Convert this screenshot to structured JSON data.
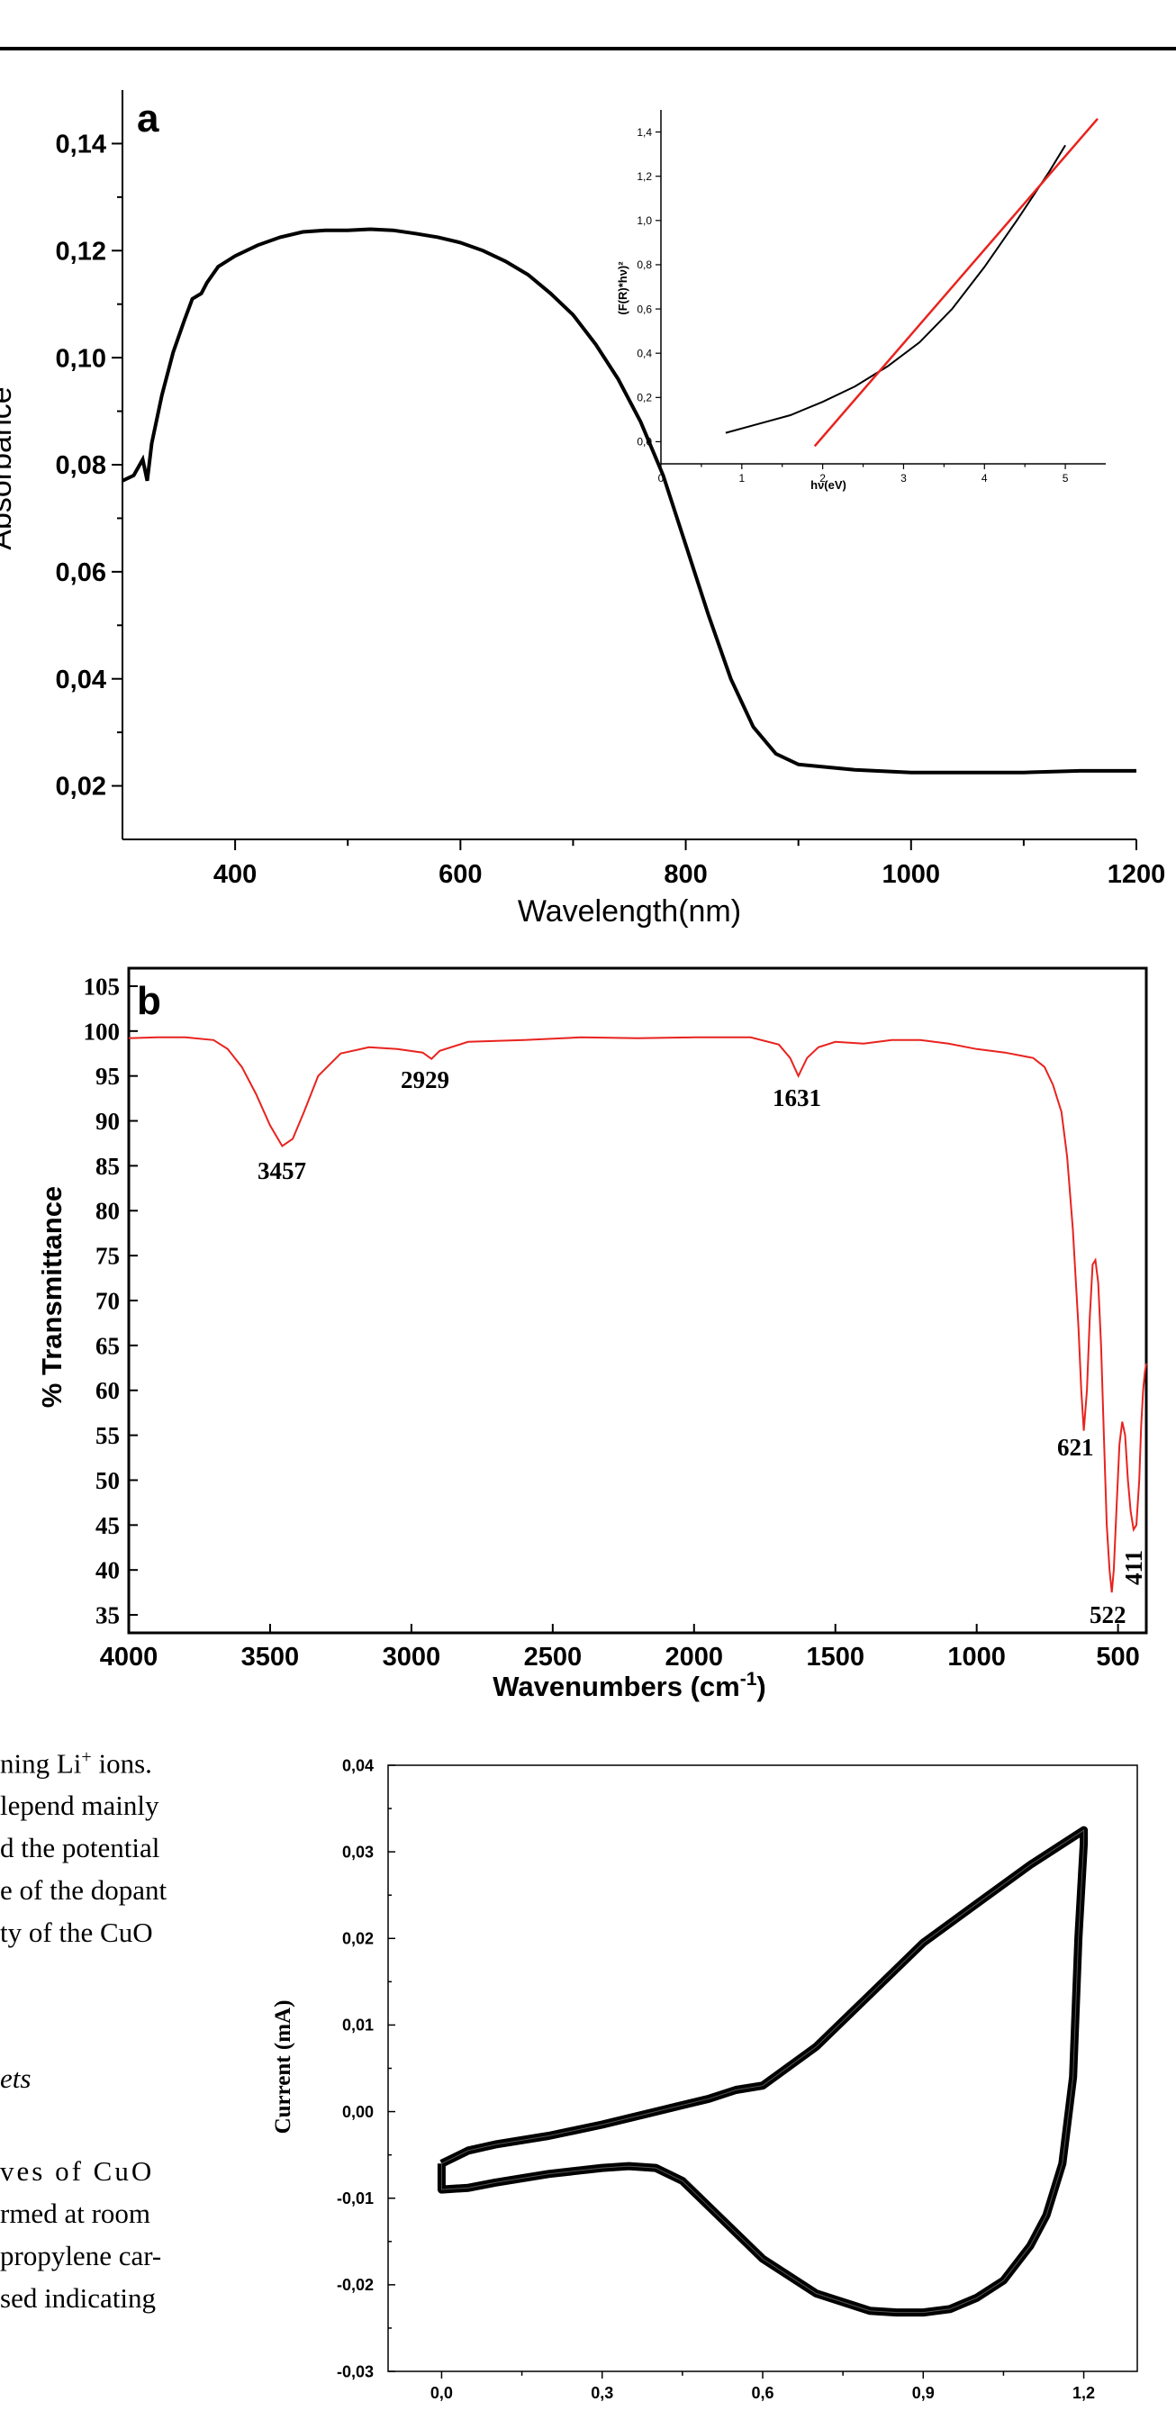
{
  "chart_data": [
    {
      "id": "a",
      "type": "line",
      "panel_label": "a",
      "xlabel": "Wavelength(nm)",
      "ylabel": "Absorbance",
      "xlim": [
        300,
        1200
      ],
      "ylim": [
        0.01,
        0.15
      ],
      "xticks": [
        400,
        600,
        800,
        1000,
        1200
      ],
      "xtick_labels": [
        "400",
        "600",
        "800",
        "1000",
        "1200"
      ],
      "yticks": [
        0.02,
        0.04,
        0.06,
        0.08,
        0.1,
        0.12,
        0.14
      ],
      "ytick_labels": [
        "0,02",
        "0,04",
        "0,06",
        "0,08",
        "0,10",
        "0,12",
        "0,14"
      ],
      "line_color": "#000000",
      "series": [
        {
          "x": [
            300,
            310,
            318,
            322,
            326,
            335,
            345,
            355,
            362,
            370,
            375,
            385,
            400,
            420,
            440,
            460,
            480,
            500,
            520,
            540,
            560,
            580,
            600,
            620,
            640,
            660,
            680,
            700,
            720,
            740,
            760,
            780,
            800,
            820,
            840,
            860,
            880,
            900,
            950,
            1000,
            1050,
            1100,
            1150,
            1200
          ],
          "y": [
            0.077,
            0.078,
            0.081,
            0.077,
            0.084,
            0.093,
            0.101,
            0.107,
            0.111,
            0.112,
            0.114,
            0.117,
            0.119,
            0.121,
            0.1225,
            0.1235,
            0.1238,
            0.1238,
            0.124,
            0.1238,
            0.1232,
            0.1225,
            0.1215,
            0.12,
            0.118,
            0.1155,
            0.112,
            0.108,
            0.1025,
            0.096,
            0.088,
            0.078,
            0.065,
            0.052,
            0.04,
            0.031,
            0.026,
            0.024,
            0.023,
            0.0225,
            0.0225,
            0.0225,
            0.0228,
            0.0228
          ]
        }
      ],
      "inset": {
        "xlabel": "hν(eV)",
        "ylabel": "(F(R)*hν)²",
        "xlim": [
          0,
          5.5
        ],
        "ylim": [
          -0.1,
          1.5
        ],
        "xticks": [
          0,
          1,
          2,
          3,
          4,
          5
        ],
        "xtick_labels": [
          "0",
          "1",
          "2",
          "3",
          "4",
          "5"
        ],
        "yticks": [
          0.0,
          0.2,
          0.4,
          0.6,
          0.8,
          1.0,
          1.2,
          1.4
        ],
        "ytick_labels": [
          "0,0",
          "0,2",
          "0,4",
          "0,6",
          "0,8",
          "1,0",
          "1,2",
          "1,4"
        ],
        "series": [
          {
            "color": "#000000",
            "x": [
              0.8,
              1.2,
              1.6,
              2.0,
              2.4,
              2.8,
              3.2,
              3.6,
              4.0,
              4.4,
              4.8,
              5.0
            ],
            "y": [
              0.04,
              0.08,
              0.12,
              0.18,
              0.25,
              0.34,
              0.45,
              0.6,
              0.79,
              1.0,
              1.22,
              1.34
            ]
          },
          {
            "color": "#e8231f",
            "x": [
              1.9,
              5.4
            ],
            "y": [
              -0.02,
              1.46
            ]
          }
        ]
      }
    },
    {
      "id": "b",
      "type": "line",
      "panel_label": "b",
      "xlabel": "Wavenumbers (cm",
      "xlabel_sup": "-1",
      "xlabel_end": ")",
      "ylabel": "% Transmittance",
      "xlim": [
        4000,
        400
      ],
      "ylim": [
        33,
        107
      ],
      "xticks": [
        4000,
        3500,
        3000,
        2500,
        2000,
        1500,
        1000,
        500
      ],
      "xtick_labels": [
        "4000",
        "3500",
        "3000",
        "2500",
        "2000",
        "1500",
        "1000",
        "500"
      ],
      "yticks": [
        35,
        40,
        45,
        50,
        55,
        60,
        65,
        70,
        75,
        80,
        85,
        90,
        95,
        100,
        105
      ],
      "ytick_labels": [
        "35",
        "40",
        "45",
        "50",
        "55",
        "60",
        "65",
        "70",
        "75",
        "80",
        "85",
        "90",
        "95",
        "100",
        "105"
      ],
      "line_color": "#e8231f",
      "series": [
        {
          "x": [
            4000,
            3900,
            3800,
            3700,
            3650,
            3600,
            3550,
            3500,
            3457,
            3420,
            3380,
            3330,
            3250,
            3150,
            3050,
            2960,
            2929,
            2900,
            2800,
            2600,
            2400,
            2200,
            2000,
            1800,
            1700,
            1660,
            1631,
            1600,
            1560,
            1500,
            1400,
            1300,
            1200,
            1100,
            1000,
            900,
            800,
            760,
            730,
            700,
            680,
            660,
            640,
            630,
            621,
            610,
            600,
            590,
            580,
            570,
            560,
            550,
            540,
            530,
            522,
            515,
            505,
            495,
            485,
            475,
            465,
            455,
            445,
            435,
            425,
            418,
            411,
            405,
            400
          ],
          "y": [
            99.2,
            99.3,
            99.3,
            99.0,
            98.0,
            96.0,
            93.0,
            89.5,
            87.2,
            88.0,
            91.0,
            95.0,
            97.5,
            98.2,
            98.0,
            97.6,
            96.9,
            97.8,
            98.8,
            99.0,
            99.3,
            99.2,
            99.3,
            99.3,
            98.5,
            97.0,
            95.0,
            97.0,
            98.2,
            98.8,
            98.6,
            99.0,
            99.0,
            98.6,
            98.0,
            97.6,
            97.0,
            96.0,
            94.0,
            91.0,
            86.0,
            78.0,
            67.0,
            60.0,
            55.5,
            60.0,
            68.0,
            74.0,
            74.5,
            72.0,
            65.0,
            55.0,
            45.0,
            40.0,
            37.5,
            40.0,
            47.0,
            54.0,
            56.5,
            55.0,
            50.0,
            46.5,
            44.5,
            45.0,
            50.0,
            56.0,
            60.0,
            62.0,
            63.0
          ]
        }
      ],
      "annotations": [
        "3457",
        "2929",
        "1631",
        "621",
        "522",
        "411"
      ]
    },
    {
      "id": "c",
      "type": "line",
      "ylabel": "Current (mA)",
      "xlim": [
        -0.1,
        1.3
      ],
      "ylim": [
        -0.03,
        0.04
      ],
      "xticks": [
        0.0,
        0.3,
        0.6,
        0.9,
        1.2
      ],
      "xtick_labels": [
        "0,0",
        "0,3",
        "0,6",
        "0,9",
        "1,2"
      ],
      "yticks": [
        -0.03,
        -0.02,
        -0.01,
        0.0,
        0.01,
        0.02,
        0.03,
        0.04
      ],
      "ytick_labels": [
        "-0,03",
        "-0,02",
        "-0,01",
        "0,00",
        "0,01",
        "0,02",
        "0,03",
        "0,04"
      ],
      "line_color": "#000000",
      "series": [
        {
          "x": [
            0.0,
            0.05,
            0.1,
            0.2,
            0.3,
            0.4,
            0.5,
            0.55,
            0.6,
            0.7,
            0.8,
            0.9,
            1.0,
            1.1,
            1.2,
            1.2,
            1.19,
            1.18,
            1.16,
            1.13,
            1.1,
            1.05,
            1.0,
            0.95,
            0.9,
            0.85,
            0.8,
            0.7,
            0.6,
            0.5,
            0.45,
            0.4,
            0.35,
            0.3,
            0.2,
            0.1,
            0.05,
            0.0,
            0.0
          ],
          "y": [
            -0.006,
            -0.0045,
            -0.0038,
            -0.0028,
            -0.0015,
            0.0,
            0.0015,
            0.0025,
            0.003,
            0.0075,
            0.0135,
            0.0195,
            0.024,
            0.0285,
            0.0325,
            0.031,
            0.02,
            0.004,
            -0.006,
            -0.012,
            -0.0155,
            -0.0195,
            -0.0215,
            -0.0228,
            -0.0232,
            -0.0232,
            -0.023,
            -0.021,
            -0.017,
            -0.011,
            -0.008,
            -0.0065,
            -0.0063,
            -0.0065,
            -0.0072,
            -0.0082,
            -0.0088,
            -0.009,
            -0.006
          ]
        }
      ]
    }
  ],
  "body_text": {
    "line1_pre": "ning Li",
    "line1_sup": "+",
    "line1_post": " ions.",
    "line2": "lepend mainly",
    "line3": "d the potential",
    "line4": "e of the dopant",
    "line5": "ty of the CuO",
    "line6": "ets",
    "line7": "ves of CuO",
    "line8": "rmed at room",
    "line9": "propylene car-",
    "line10": "sed indicating"
  }
}
